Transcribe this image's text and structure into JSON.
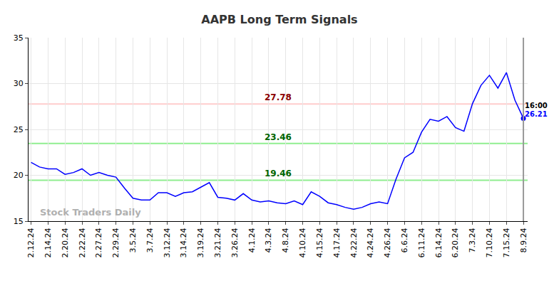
{
  "chart_data": {
    "type": "line",
    "title": "AAPB Long Term Signals",
    "categories": [
      "2.12.24",
      null,
      "2.14.24",
      null,
      "2.20.24",
      null,
      "2.22.24",
      null,
      "2.27.24",
      null,
      "2.29.24",
      null,
      "3.5.24",
      null,
      "3.7.24",
      null,
      "3.12.24",
      null,
      "3.14.24",
      null,
      "3.19.24",
      null,
      "3.21.24",
      null,
      "3.26.24",
      null,
      "4.1.24",
      null,
      "4.3.24",
      null,
      "4.8.24",
      null,
      "4.10.24",
      null,
      "4.15.24",
      null,
      "4.17.24",
      null,
      "4.22.24",
      null,
      "4.24.24",
      null,
      "4.26.24",
      null,
      "6.6.24",
      null,
      "6.11.24",
      null,
      "6.14.24",
      null,
      "6.20.24",
      null,
      "7.3.24",
      null,
      "7.10.24",
      null,
      "7.15.24",
      null,
      "8.9.24"
    ],
    "values": [
      21.4,
      20.9,
      20.7,
      20.7,
      20.1,
      20.3,
      20.7,
      20.0,
      20.3,
      20.0,
      19.8,
      18.6,
      17.5,
      17.3,
      17.3,
      18.1,
      18.1,
      17.7,
      18.1,
      18.2,
      18.7,
      19.2,
      17.6,
      17.5,
      17.3,
      18.0,
      17.3,
      17.1,
      17.2,
      17.0,
      16.9,
      17.2,
      16.8,
      18.2,
      17.7,
      17.0,
      16.8,
      16.5,
      16.3,
      16.5,
      16.9,
      17.1,
      16.9,
      19.6,
      21.9,
      22.5,
      24.7,
      26.1,
      25.9,
      26.4,
      25.2,
      24.8,
      27.8,
      29.8,
      30.9,
      29.5,
      31.2,
      28.2,
      26.21
    ],
    "color": "#0000ff",
    "ylim": [
      15,
      35
    ],
    "yticks": [
      15,
      20,
      25,
      30,
      35
    ],
    "grid": true,
    "annotations": [
      {
        "text": "27.78",
        "value": 27.78,
        "color": "#8b0000",
        "line_color": "#ffcccc"
      },
      {
        "text": "23.46",
        "value": 23.46,
        "color": "#006400",
        "line_color": "#90ee90"
      },
      {
        "text": "19.46",
        "value": 19.46,
        "color": "#006400",
        "line_color": "#90ee90"
      }
    ],
    "last_point": {
      "time": "16:00",
      "label": "26.21"
    },
    "watermark": "Stock Traders Daily"
  }
}
